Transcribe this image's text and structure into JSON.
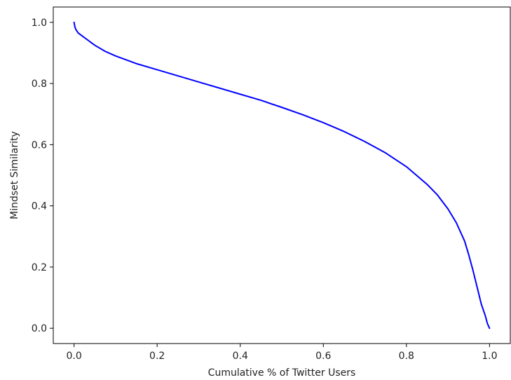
{
  "chart_data": {
    "type": "line",
    "title": "",
    "xlabel": "Cumulative % of Twitter Users",
    "ylabel": "Mindset Similarity",
    "xlim": [
      -0.05,
      1.05
    ],
    "ylim": [
      -0.05,
      1.05
    ],
    "grid": false,
    "xticks": [
      0.0,
      0.2,
      0.4,
      0.6,
      0.8,
      1.0
    ],
    "xtick_labels": [
      "0.0",
      "0.2",
      "0.4",
      "0.6",
      "0.8",
      "1.0"
    ],
    "yticks": [
      0.0,
      0.2,
      0.4,
      0.6,
      0.8,
      1.0
    ],
    "ytick_labels": [
      "0.0",
      "0.2",
      "0.4",
      "0.6",
      "0.8",
      "1.0"
    ],
    "series": [
      {
        "color": "#0000ff",
        "x": [
          0.0,
          0.002,
          0.005,
          0.01,
          0.02,
          0.035,
          0.05,
          0.075,
          0.1,
          0.15,
          0.2,
          0.25,
          0.3,
          0.35,
          0.4,
          0.45,
          0.5,
          0.55,
          0.6,
          0.65,
          0.7,
          0.75,
          0.8,
          0.85,
          0.875,
          0.9,
          0.92,
          0.94,
          0.95,
          0.96,
          0.97,
          0.98,
          0.99,
          0.995,
          1.0
        ],
        "y": [
          1.0,
          0.985,
          0.975,
          0.965,
          0.955,
          0.94,
          0.925,
          0.905,
          0.89,
          0.865,
          0.845,
          0.825,
          0.805,
          0.785,
          0.765,
          0.745,
          0.722,
          0.698,
          0.672,
          0.643,
          0.61,
          0.573,
          0.528,
          0.47,
          0.435,
          0.39,
          0.345,
          0.285,
          0.24,
          0.19,
          0.135,
          0.08,
          0.04,
          0.015,
          0.0
        ]
      }
    ]
  }
}
